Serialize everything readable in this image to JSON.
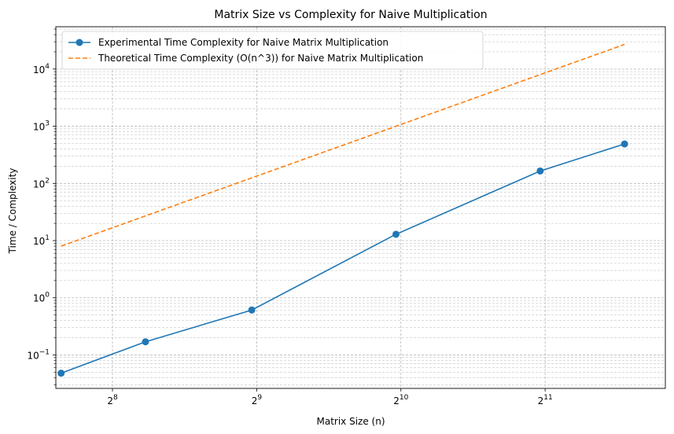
{
  "chart_data": {
    "type": "line",
    "title": "Matrix Size vs Complexity for Naive Multiplication",
    "xlabel": "Matrix Size (n)",
    "ylabel": "Time / Complexity",
    "xscale": "log2",
    "yscale": "log10",
    "xlim": [
      195,
      3650
    ],
    "ylim": [
      0.026,
      55000
    ],
    "grid": true,
    "legend_position": "top-left",
    "x_ticks": [
      {
        "value": 256,
        "base": "2",
        "exp": "8"
      },
      {
        "value": 512,
        "base": "2",
        "exp": "9"
      },
      {
        "value": 1024,
        "base": "2",
        "exp": "10"
      },
      {
        "value": 2048,
        "base": "2",
        "exp": "11"
      }
    ],
    "y_ticks": [
      {
        "value": 0.1,
        "base": "10",
        "exp": "−1"
      },
      {
        "value": 1,
        "base": "10",
        "exp": "0"
      },
      {
        "value": 10,
        "base": "10",
        "exp": "1"
      },
      {
        "value": 100,
        "base": "10",
        "exp": "2"
      },
      {
        "value": 1000,
        "base": "10",
        "exp": "3"
      },
      {
        "value": 10000,
        "base": "10",
        "exp": "4"
      }
    ],
    "series": [
      {
        "name": "Experimental Time Complexity for Naive Matrix Multiplication",
        "color": "#1f77b4",
        "style": "solid",
        "marker": "circle",
        "x": [
          200,
          300,
          500,
          1000,
          2000,
          3000
        ],
        "y": [
          0.048,
          0.17,
          0.61,
          12.9,
          165,
          490
        ]
      },
      {
        "name": "Theoretical Time Complexity (O(n^3)) for Naive Matrix Multiplication",
        "color": "#ff7f0e",
        "style": "dashed",
        "marker": "none",
        "x": [
          200,
          300,
          500,
          1000,
          2000,
          3000
        ],
        "y": [
          8,
          27,
          125,
          1000,
          8000,
          27000
        ]
      }
    ]
  }
}
